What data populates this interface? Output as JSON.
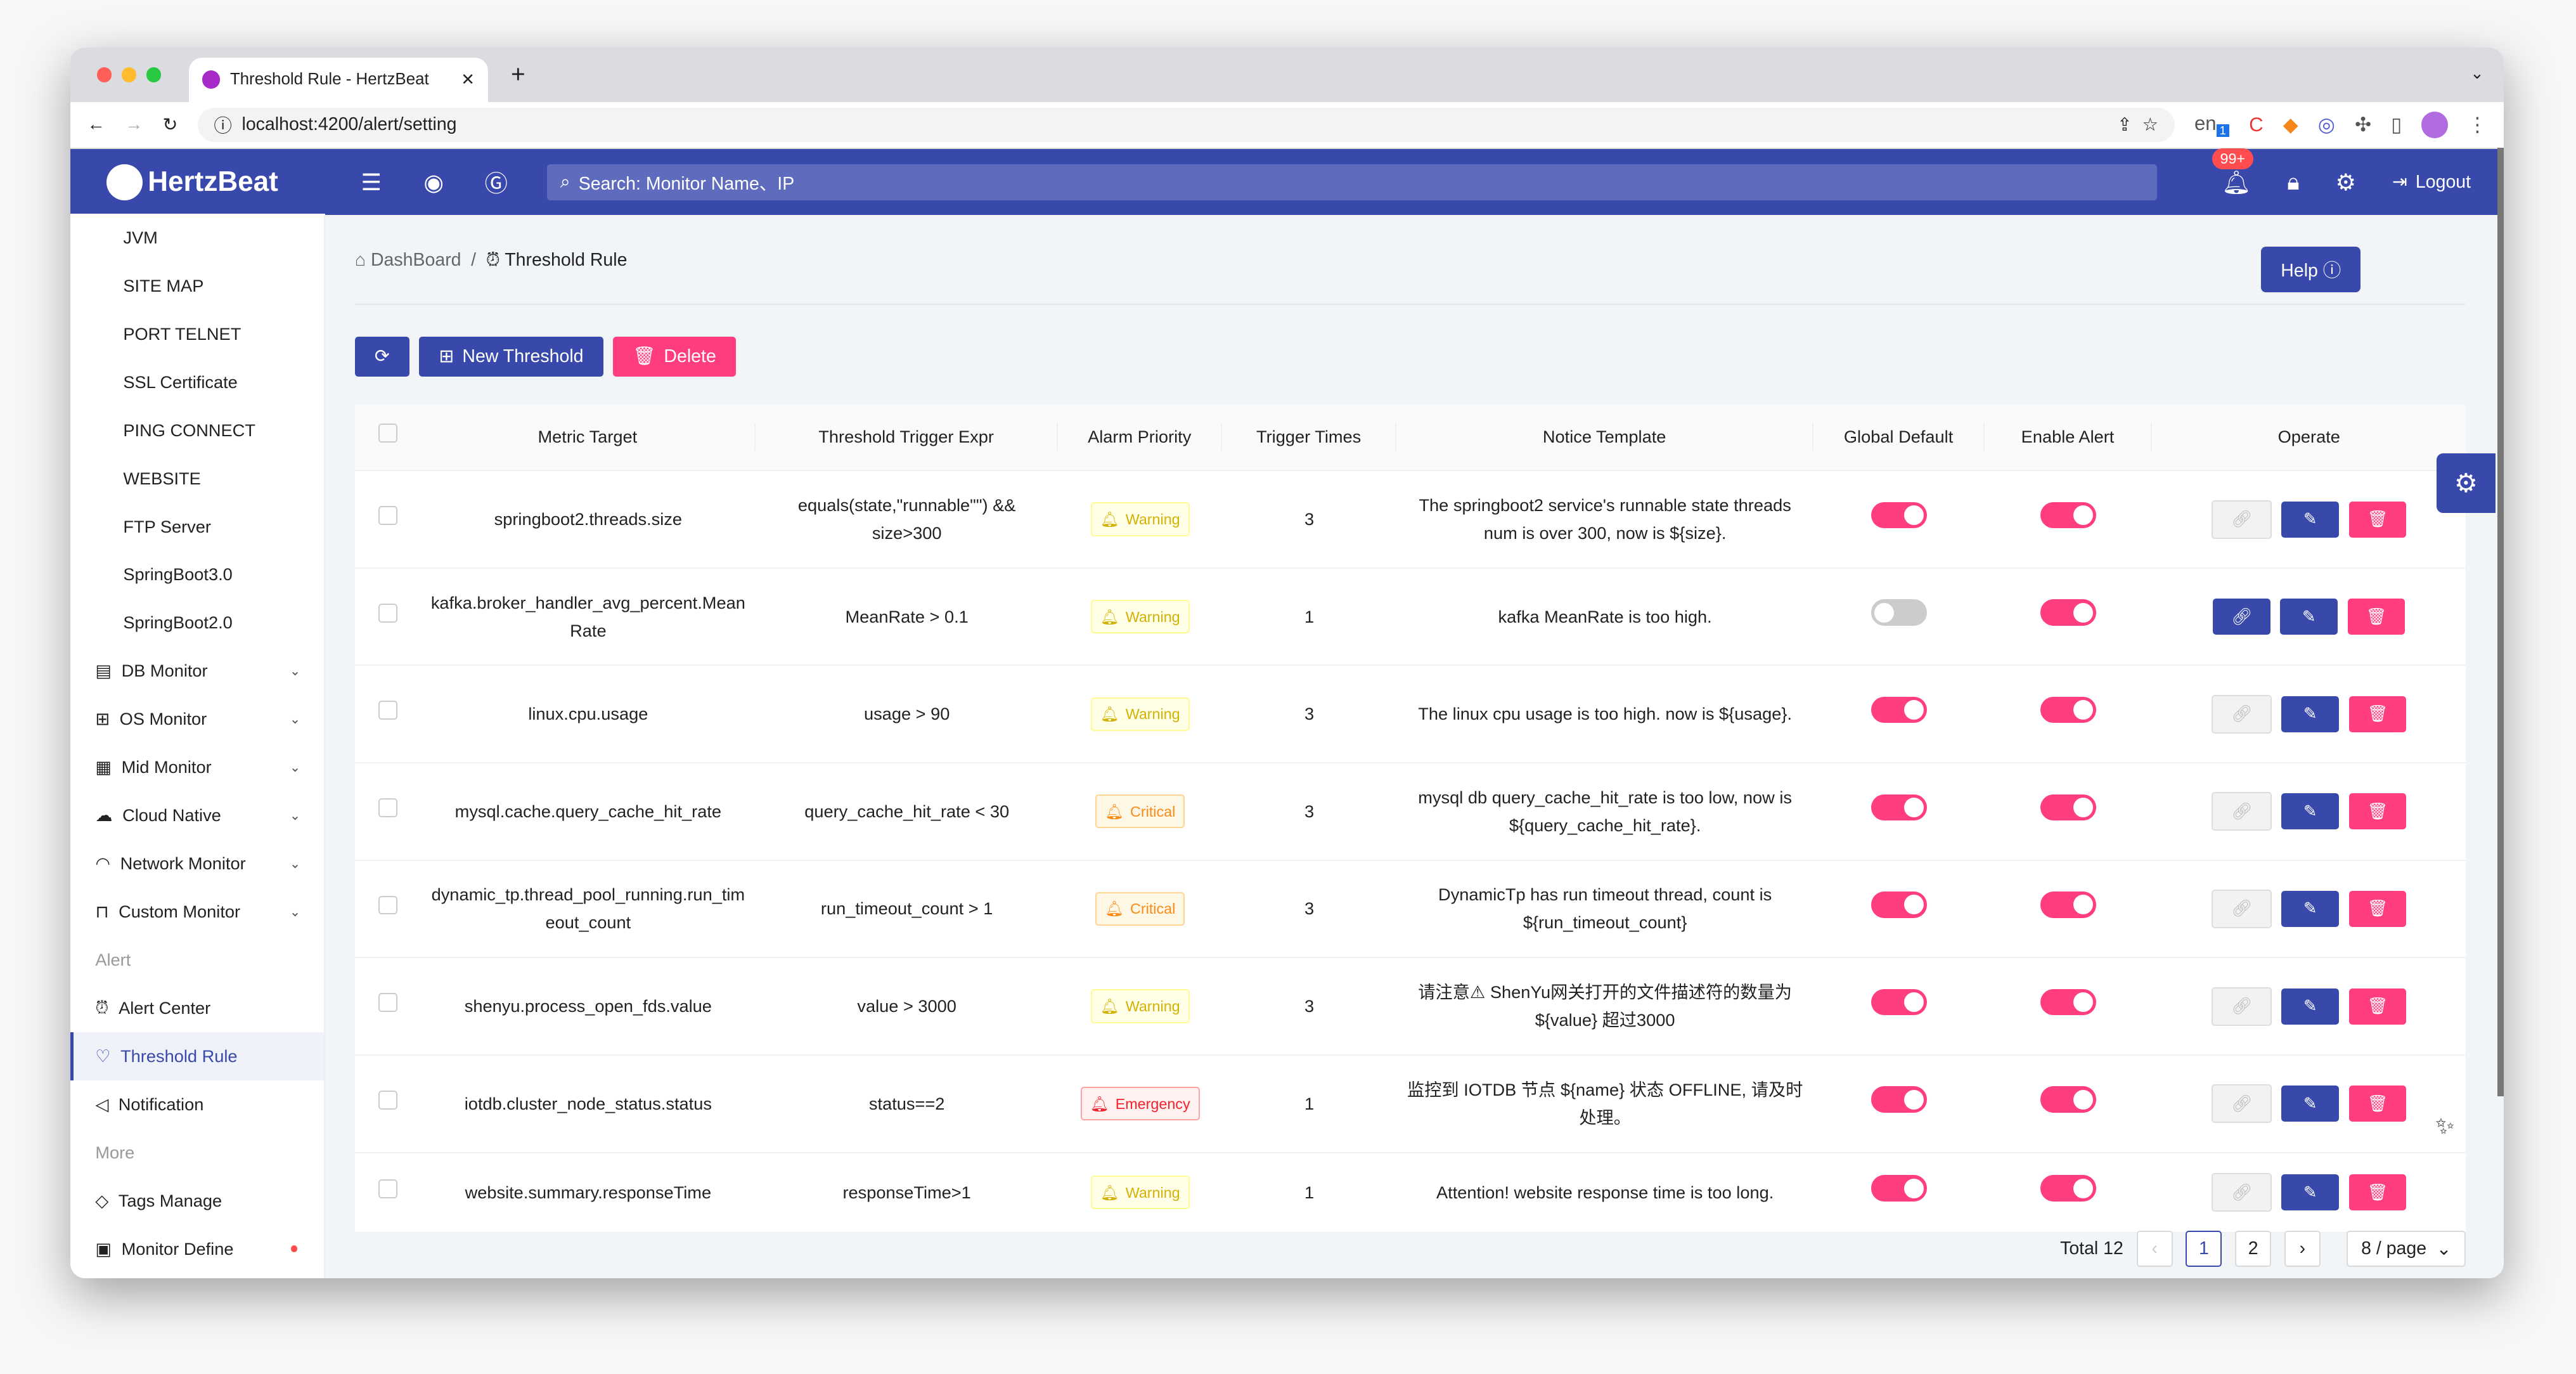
{
  "browser": {
    "tab_title": "Threshold Rule - HertzBeat",
    "url": "localhost:4200/alert/setting",
    "ext_badge": "1"
  },
  "header": {
    "brand": "HertzBeat",
    "search_placeholder": "Search: Monitor Name、IP",
    "notif_count": "99+",
    "logout": "Logout",
    "color": "#3949ab"
  },
  "sidebar": {
    "items": [
      {
        "label": "JVM",
        "type": "sub"
      },
      {
        "label": "SITE MAP",
        "type": "sub"
      },
      {
        "label": "PORT TELNET",
        "type": "sub"
      },
      {
        "label": "SSL Certificate",
        "type": "sub"
      },
      {
        "label": "PING CONNECT",
        "type": "sub"
      },
      {
        "label": "WEBSITE",
        "type": "sub"
      },
      {
        "label": "FTP Server",
        "type": "sub"
      },
      {
        "label": "SpringBoot3.0",
        "type": "sub"
      },
      {
        "label": "SpringBoot2.0",
        "type": "sub"
      },
      {
        "label": "DB Monitor",
        "type": "top",
        "icon": "database-icon",
        "chev": true
      },
      {
        "label": "OS Monitor",
        "type": "top",
        "icon": "windows-icon",
        "chev": true
      },
      {
        "label": "Mid Monitor",
        "type": "top",
        "icon": "appstore-icon",
        "chev": true
      },
      {
        "label": "Cloud Native",
        "type": "top",
        "icon": "cloud-icon",
        "chev": true
      },
      {
        "label": "Network Monitor",
        "type": "top",
        "icon": "wifi-icon",
        "chev": true
      },
      {
        "label": "Custom Monitor",
        "type": "top",
        "icon": "gift-icon",
        "chev": true
      },
      {
        "label": "Alert",
        "type": "group"
      },
      {
        "label": "Alert Center",
        "type": "top",
        "icon": "alert-icon"
      },
      {
        "label": "Threshold Rule",
        "type": "top",
        "icon": "bulb-icon",
        "active": true
      },
      {
        "label": "Notification",
        "type": "top",
        "icon": "sound-icon"
      },
      {
        "label": "More",
        "type": "group"
      },
      {
        "label": "Tags Manage",
        "type": "top",
        "icon": "tag-icon"
      },
      {
        "label": "Monitor Define",
        "type": "top",
        "icon": "code-icon",
        "dot": true
      }
    ]
  },
  "breadcrumb": {
    "home": "DashBoard",
    "current": "Threshold Rule"
  },
  "help": "Help",
  "toolbar": {
    "new": "New Threshold",
    "delete": "Delete"
  },
  "table": {
    "columns": [
      "Metric Target",
      "Threshold Trigger Expr",
      "Alarm Priority",
      "Trigger Times",
      "Notice Template",
      "Global Default",
      "Enable Alert",
      "Operate"
    ],
    "rows": [
      {
        "metric": "springboot2.threads.size",
        "expr": "equals(state,\"runnable\"\") && size>300",
        "priority": "Warning",
        "times": "3",
        "template": "The springboot2 service's runnable state threads num is over 300, now is ${size}.",
        "global": true,
        "enable": true,
        "link": false
      },
      {
        "metric": "kafka.broker_handler_avg_percent.MeanRate",
        "expr": "MeanRate > 0.1",
        "priority": "Warning",
        "times": "1",
        "template": "kafka MeanRate is too high.",
        "global": false,
        "enable": true,
        "link": true
      },
      {
        "metric": "linux.cpu.usage",
        "expr": "usage > 90",
        "priority": "Warning",
        "times": "3",
        "template": "The linux cpu usage is too high. now is ${usage}.",
        "global": true,
        "enable": true,
        "link": false
      },
      {
        "metric": "mysql.cache.query_cache_hit_rate",
        "expr": "query_cache_hit_rate < 30",
        "priority": "Critical",
        "times": "3",
        "template": "mysql db query_cache_hit_rate is too low, now is ${query_cache_hit_rate}.",
        "global": true,
        "enable": true,
        "link": false
      },
      {
        "metric": "dynamic_tp.thread_pool_running.run_timeout_count",
        "expr": "run_timeout_count > 1",
        "priority": "Critical",
        "times": "3",
        "template": "DynamicTp has run timeout thread, count is ${run_timeout_count}",
        "global": true,
        "enable": true,
        "link": false
      },
      {
        "metric": "shenyu.process_open_fds.value",
        "expr": "value > 3000",
        "priority": "Warning",
        "times": "3",
        "template": "请注意⚠ ShenYu网关打开的文件描述符的数量为 ${value} 超过3000",
        "global": true,
        "enable": true,
        "link": false
      },
      {
        "metric": "iotdb.cluster_node_status.status",
        "expr": "status==2",
        "priority": "Emergency",
        "times": "1",
        "template": "监控到 IOTDB 节点 ${name} 状态 OFFLINE, 请及时处理。",
        "global": true,
        "enable": true,
        "link": false
      },
      {
        "metric": "website.summary.responseTime",
        "expr": "responseTime>1",
        "priority": "Warning",
        "times": "1",
        "template": "Attention! website response time is too long.",
        "global": true,
        "enable": true,
        "link": false
      }
    ]
  },
  "priority_colors": {
    "Warning": "#d4b106",
    "Critical": "#fa8c16",
    "Emergency": "#f5222d"
  },
  "pagination": {
    "total": "Total 12",
    "pages": [
      "1",
      "2"
    ],
    "current": "1",
    "page_size": "8 / page"
  }
}
